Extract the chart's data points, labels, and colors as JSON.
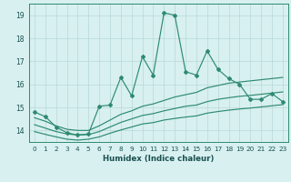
{
  "xlabel": "Humidex (Indice chaleur)",
  "x": [
    0,
    1,
    2,
    3,
    4,
    5,
    6,
    7,
    8,
    9,
    10,
    11,
    12,
    13,
    14,
    15,
    16,
    17,
    18,
    19,
    20,
    21,
    22,
    23
  ],
  "y_main": [
    14.8,
    14.6,
    14.15,
    13.9,
    13.8,
    13.85,
    15.05,
    15.1,
    16.3,
    15.5,
    17.2,
    16.4,
    19.1,
    19.0,
    16.55,
    16.4,
    17.45,
    16.65,
    16.25,
    16.0,
    15.35,
    15.35,
    15.6,
    15.25
  ],
  "y_upper": [
    14.55,
    14.4,
    14.2,
    14.05,
    14.0,
    14.0,
    14.2,
    14.45,
    14.7,
    14.85,
    15.05,
    15.15,
    15.3,
    15.45,
    15.55,
    15.65,
    15.85,
    15.95,
    16.05,
    16.1,
    16.15,
    16.2,
    16.25,
    16.3
  ],
  "y_mid": [
    14.25,
    14.1,
    13.95,
    13.85,
    13.8,
    13.82,
    13.95,
    14.15,
    14.35,
    14.5,
    14.65,
    14.73,
    14.85,
    14.95,
    15.05,
    15.1,
    15.25,
    15.35,
    15.42,
    15.48,
    15.52,
    15.57,
    15.62,
    15.67
  ],
  "y_lower": [
    13.95,
    13.83,
    13.72,
    13.62,
    13.58,
    13.62,
    13.72,
    13.88,
    14.02,
    14.15,
    14.28,
    14.34,
    14.45,
    14.52,
    14.58,
    14.63,
    14.75,
    14.82,
    14.88,
    14.93,
    14.97,
    15.02,
    15.07,
    15.12
  ],
  "line_color": "#2e8b70",
  "bg_color": "#d8f0f0",
  "grid_color": "#b8d8d8",
  "ylim": [
    13.5,
    19.5
  ],
  "ytick_top": 19,
  "yticks": [
    14,
    15,
    16,
    17,
    18,
    19
  ],
  "xticks": [
    0,
    1,
    2,
    3,
    4,
    5,
    6,
    7,
    8,
    9,
    10,
    11,
    12,
    13,
    14,
    15,
    16,
    17,
    18,
    19,
    20,
    21,
    22,
    23
  ]
}
